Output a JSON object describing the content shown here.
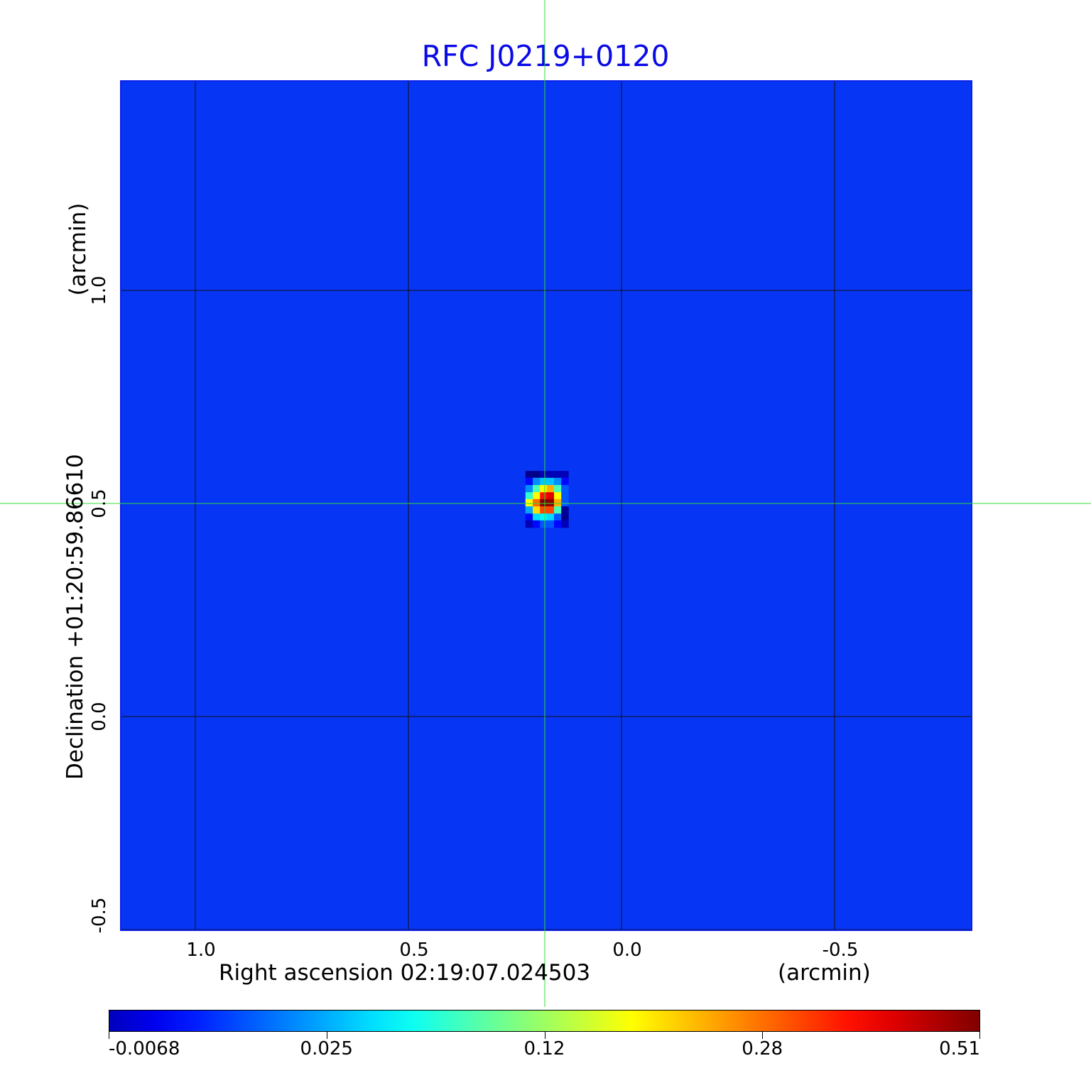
{
  "chart_data": {
    "type": "heatmap",
    "title": "RFC J0219+0120",
    "xlabel": "Right ascension  02:19:07.024503",
    "xunit": "(arcmin)",
    "ylabel": "Declination  +01:20:59.86610",
    "yunit": "(arcmin)",
    "xlim": [
      1.18,
      -0.82
    ],
    "ylim": [
      -0.51,
      1.49
    ],
    "x_ticks": [
      "1.0",
      "0.5",
      "0.0",
      "-0.5"
    ],
    "x_tick_values": [
      1.0,
      0.5,
      0.0,
      -0.5
    ],
    "y_ticks": [
      "1.0",
      "0.5",
      "0.0",
      "-0.5"
    ],
    "y_tick_values": [
      1.0,
      0.5,
      0.0,
      -0.5
    ],
    "grid": true,
    "crosshair": {
      "ra": 0.18,
      "dec": 0.5,
      "color": "#33dd33"
    },
    "colormap": "jet",
    "background_value": 0.0,
    "colorbar": {
      "ticks": [
        "-0.0068",
        "0.025",
        "0.12",
        "0.28",
        "0.51"
      ],
      "tick_values": [
        -0.0068,
        0.025,
        0.12,
        0.28,
        0.51
      ],
      "placement": "bottom"
    },
    "source_cells": {
      "ra": [
        0.217,
        0.2,
        0.183,
        0.167,
        0.15,
        0.133
      ],
      "dec": [
        0.568,
        0.552,
        0.535,
        0.518,
        0.502,
        0.485,
        0.468,
        0.452
      ],
      "values": [
        [
          -0.005,
          -0.006,
          0.0,
          0.0,
          0.0,
          0.0
        ],
        [
          0.01,
          0.03,
          0.05,
          0.05,
          0.03,
          0.01
        ],
        [
          0.03,
          0.1,
          0.2,
          0.25,
          0.1,
          0.02
        ],
        [
          0.09,
          0.2,
          0.38,
          0.42,
          0.2,
          0.02
        ],
        [
          0.2,
          0.3,
          0.51,
          0.5,
          0.25,
          0.02
        ],
        [
          0.04,
          0.22,
          0.33,
          0.33,
          0.1,
          -0.004
        ],
        [
          0.01,
          0.06,
          0.07,
          0.06,
          0.02,
          -0.005
        ],
        [
          0.0,
          0.01,
          0.02,
          0.02,
          0.01,
          0.0
        ]
      ]
    }
  }
}
